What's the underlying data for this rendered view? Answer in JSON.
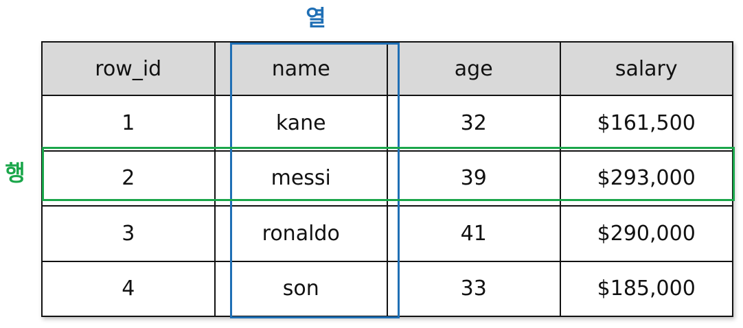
{
  "labels": {
    "column": "열",
    "row": "행"
  },
  "colors": {
    "column_highlight": "#1f6fb5",
    "row_highlight": "#1aa64a",
    "header_background": "#d9d9d9"
  },
  "table": {
    "headers": [
      "row_id",
      "name",
      "age",
      "salary"
    ],
    "rows": [
      [
        "1",
        "kane",
        "32",
        "$161,500"
      ],
      [
        "2",
        "messi",
        "39",
        "$293,000"
      ],
      [
        "3",
        "ronaldo",
        "41",
        "$290,000"
      ],
      [
        "4",
        "son",
        "33",
        "$185,000"
      ]
    ],
    "highlighted_column": "name",
    "highlighted_row_id": "2"
  }
}
